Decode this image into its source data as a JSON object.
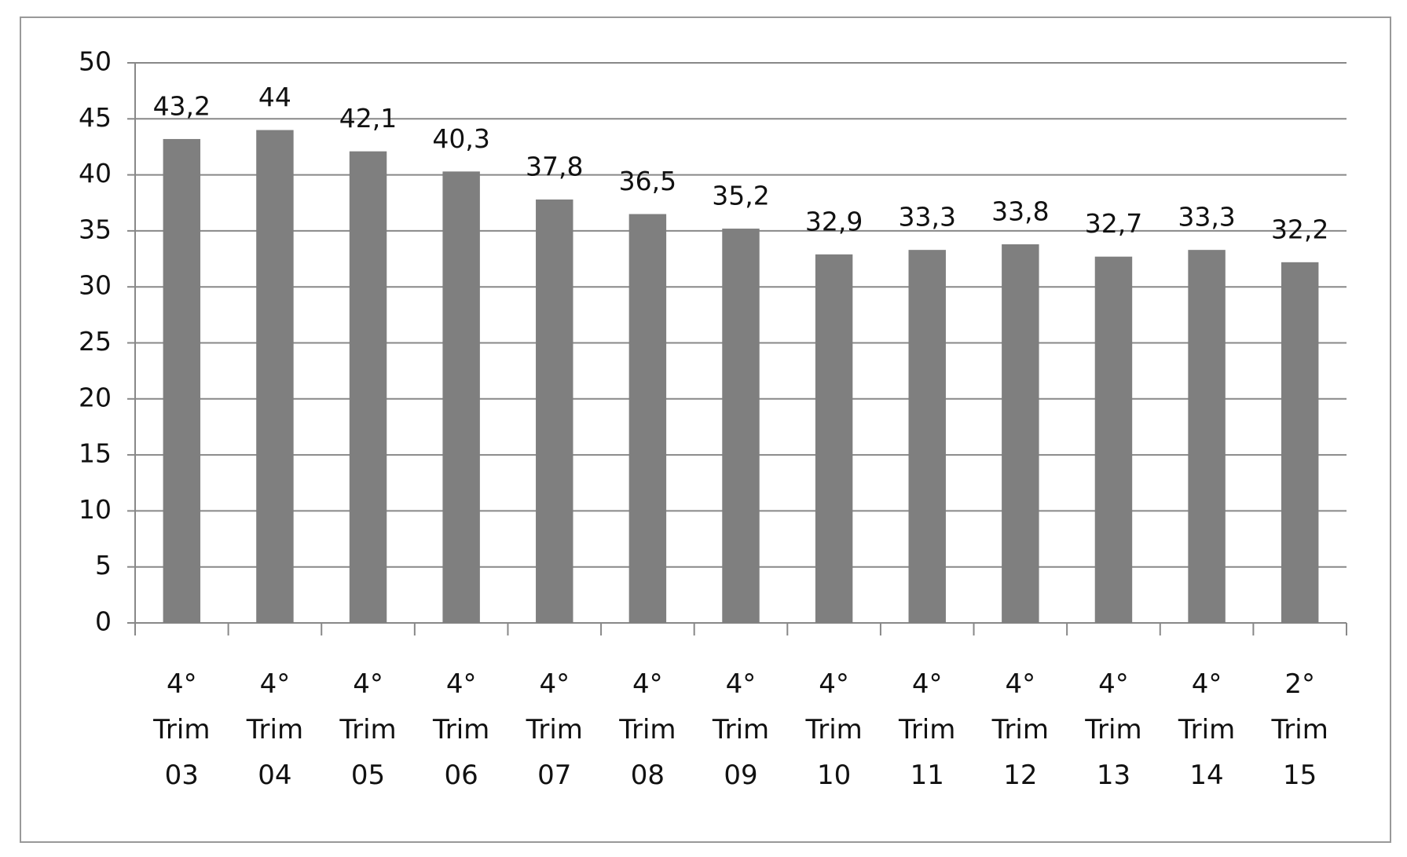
{
  "chart_data": {
    "type": "bar",
    "categories": [
      "4° Trim 03",
      "4° Trim 04",
      "4° Trim 05",
      "4° Trim 06",
      "4° Trim 07",
      "4° Trim 08",
      "4° Trim 09",
      "4° Trim 10",
      "4° Trim 11",
      "4° Trim 12",
      "4° Trim 13",
      "4° Trim 14",
      "2° Trim 15"
    ],
    "values": [
      43.2,
      44,
      42.1,
      40.3,
      37.8,
      36.5,
      35.2,
      32.9,
      33.3,
      33.8,
      32.7,
      33.3,
      32.2
    ],
    "value_labels": [
      "43,2",
      "44",
      "42,1",
      "40,3",
      "37,8",
      "36,5",
      "35,2",
      "32,9",
      "33,3",
      "33,8",
      "32,7",
      "33,3",
      "32,2"
    ],
    "color": "#7f7f7f",
    "ylim": [
      0,
      50
    ],
    "yticks": [
      0,
      5,
      10,
      15,
      20,
      25,
      30,
      35,
      40,
      45,
      50
    ],
    "grid": true
  }
}
